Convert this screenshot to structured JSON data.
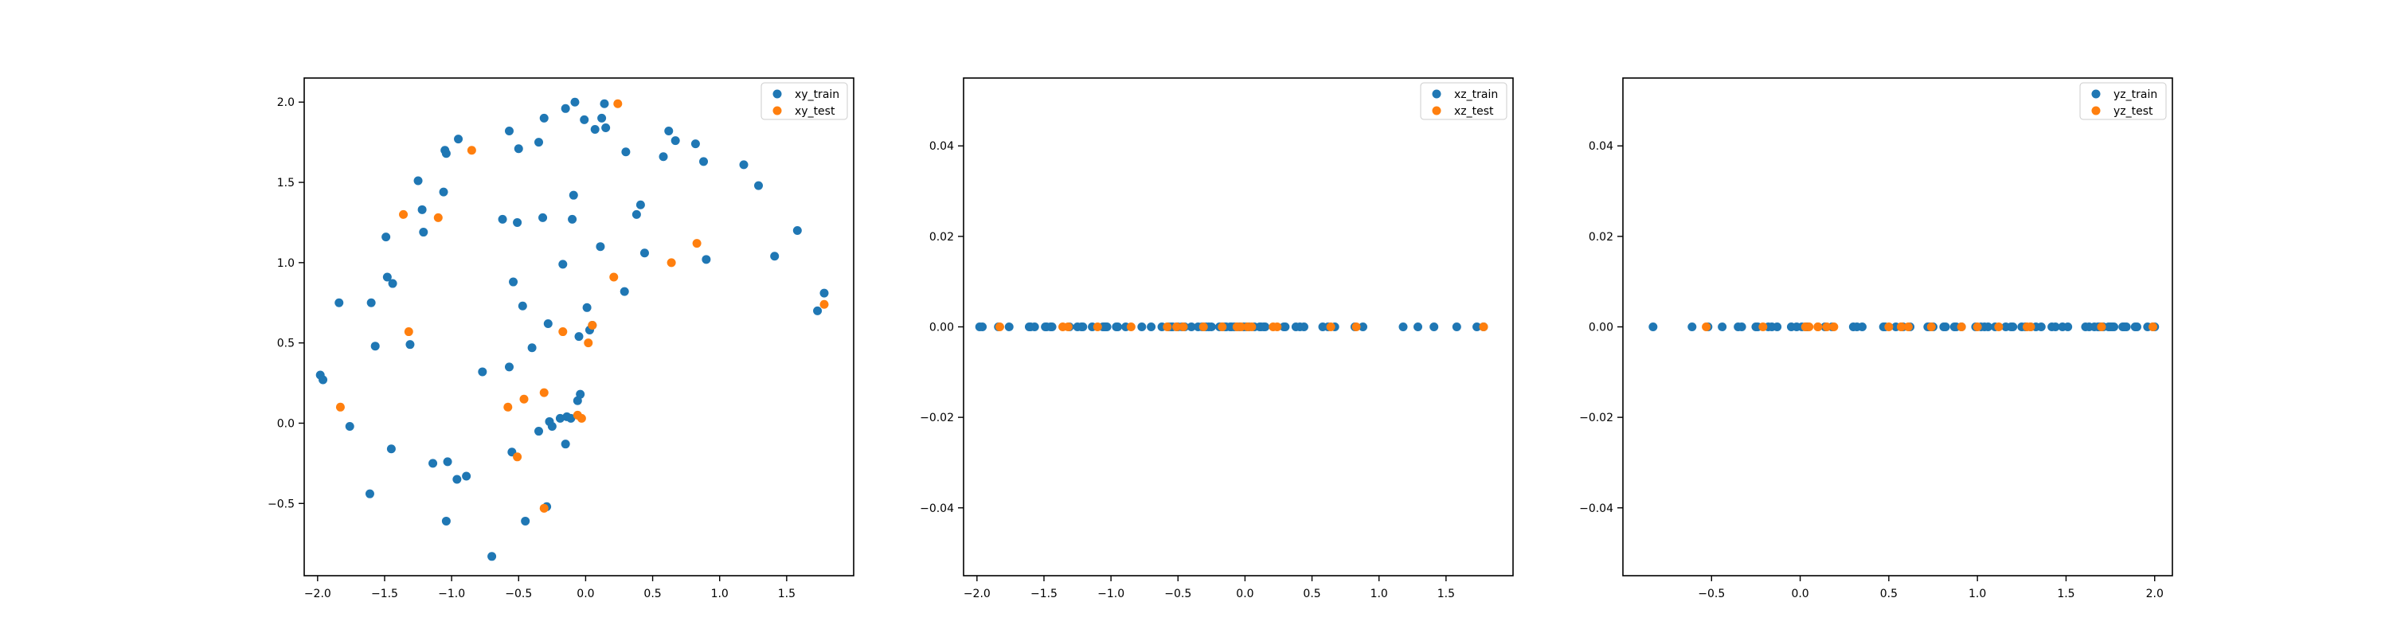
{
  "colors": {
    "train": "#1f77b4",
    "test": "#ff7f0e",
    "axes": "#000000",
    "background": "#ffffff"
  },
  "chart_data": [
    {
      "type": "scatter",
      "title": "",
      "xlabel": "",
      "ylabel": "",
      "xlim": [
        -2.1,
        2.0
      ],
      "ylim": [
        -0.95,
        2.15
      ],
      "xticks": [
        -2.0,
        -1.5,
        -1.0,
        -0.5,
        0.0,
        0.5,
        1.0,
        1.5
      ],
      "yticks": [
        -0.5,
        0.0,
        0.5,
        1.0,
        1.5,
        2.0
      ],
      "xtick_labels": [
        "−2.0",
        "−1.5",
        "−1.0",
        "−0.5",
        "0.0",
        "0.5",
        "1.0",
        "1.5"
      ],
      "ytick_labels": [
        "−0.5",
        "0.0",
        "0.5",
        "1.0",
        "1.5",
        "2.0"
      ],
      "grid": false,
      "legend": "upper right",
      "series": [
        {
          "name": "xy_train",
          "color": "#1f77b4",
          "points": [
            [
              -1.98,
              0.3
            ],
            [
              -1.96,
              0.27
            ],
            [
              -1.84,
              0.75
            ],
            [
              -1.76,
              -0.02
            ],
            [
              -1.61,
              -0.44
            ],
            [
              -1.6,
              0.75
            ],
            [
              -1.57,
              0.48
            ],
            [
              -1.49,
              1.16
            ],
            [
              -1.48,
              0.91
            ],
            [
              -1.45,
              -0.16
            ],
            [
              -1.44,
              0.87
            ],
            [
              -1.31,
              0.49
            ],
            [
              -1.25,
              1.51
            ],
            [
              -1.22,
              1.33
            ],
            [
              -1.21,
              1.19
            ],
            [
              -1.14,
              -0.25
            ],
            [
              -1.06,
              1.44
            ],
            [
              -1.05,
              1.7
            ],
            [
              -1.04,
              1.68
            ],
            [
              -1.03,
              -0.24
            ],
            [
              -1.04,
              -0.61
            ],
            [
              -0.95,
              1.77
            ],
            [
              -0.96,
              -0.35
            ],
            [
              -0.89,
              -0.33
            ],
            [
              -0.77,
              0.32
            ],
            [
              -0.7,
              -0.83
            ],
            [
              -0.62,
              1.27
            ],
            [
              -0.57,
              1.82
            ],
            [
              -0.57,
              0.35
            ],
            [
              -0.55,
              -0.18
            ],
            [
              -0.54,
              0.88
            ],
            [
              -0.51,
              1.25
            ],
            [
              -0.5,
              1.71
            ],
            [
              -0.47,
              0.73
            ],
            [
              -0.45,
              -0.61
            ],
            [
              -0.4,
              0.47
            ],
            [
              -0.35,
              1.75
            ],
            [
              -0.35,
              -0.05
            ],
            [
              -0.32,
              1.28
            ],
            [
              -0.31,
              1.9
            ],
            [
              -0.29,
              -0.52
            ],
            [
              -0.28,
              0.62
            ],
            [
              -0.27,
              0.01
            ],
            [
              -0.25,
              -0.02
            ],
            [
              -0.19,
              0.03
            ],
            [
              -0.17,
              0.99
            ],
            [
              -0.15,
              1.96
            ],
            [
              -0.15,
              -0.13
            ],
            [
              -0.14,
              0.04
            ],
            [
              -0.11,
              0.03
            ],
            [
              -0.1,
              1.27
            ],
            [
              -0.09,
              1.42
            ],
            [
              -0.08,
              2.0
            ],
            [
              -0.06,
              0.14
            ],
            [
              -0.04,
              0.18
            ],
            [
              -0.05,
              0.54
            ],
            [
              -0.01,
              1.89
            ],
            [
              0.01,
              0.72
            ],
            [
              0.03,
              0.58
            ],
            [
              0.05,
              0.61
            ],
            [
              0.07,
              1.83
            ],
            [
              0.11,
              1.1
            ],
            [
              0.12,
              1.9
            ],
            [
              0.14,
              1.99
            ],
            [
              0.15,
              1.84
            ],
            [
              0.29,
              0.82
            ],
            [
              0.3,
              1.69
            ],
            [
              0.38,
              1.3
            ],
            [
              0.41,
              1.36
            ],
            [
              0.44,
              1.06
            ],
            [
              0.58,
              1.66
            ],
            [
              0.62,
              1.82
            ],
            [
              0.67,
              1.76
            ],
            [
              0.82,
              1.74
            ],
            [
              0.88,
              1.63
            ],
            [
              0.9,
              1.02
            ],
            [
              1.18,
              1.61
            ],
            [
              1.29,
              1.48
            ],
            [
              1.41,
              1.04
            ],
            [
              1.58,
              1.2
            ],
            [
              1.73,
              0.7
            ],
            [
              1.78,
              0.81
            ]
          ]
        },
        {
          "name": "xy_test",
          "color": "#ff7f0e",
          "points": [
            [
              -1.83,
              0.1
            ],
            [
              -1.36,
              1.3
            ],
            [
              -1.32,
              0.57
            ],
            [
              -1.1,
              1.28
            ],
            [
              -0.85,
              1.7
            ],
            [
              -0.58,
              0.1
            ],
            [
              -0.51,
              -0.21
            ],
            [
              -0.46,
              0.15
            ],
            [
              -0.31,
              0.19
            ],
            [
              -0.31,
              -0.53
            ],
            [
              -0.17,
              0.57
            ],
            [
              -0.06,
              0.05
            ],
            [
              -0.03,
              0.03
            ],
            [
              0.02,
              0.5
            ],
            [
              0.05,
              0.61
            ],
            [
              0.21,
              0.91
            ],
            [
              0.24,
              1.99
            ],
            [
              0.64,
              1.0
            ],
            [
              0.83,
              1.12
            ],
            [
              1.78,
              0.74
            ]
          ]
        }
      ]
    },
    {
      "type": "scatter",
      "title": "",
      "xlabel": "",
      "ylabel": "",
      "xlim": [
        -2.1,
        2.0
      ],
      "ylim": [
        -0.055,
        0.055
      ],
      "xticks": [
        -2.0,
        -1.5,
        -1.0,
        -0.5,
        0.0,
        0.5,
        1.0,
        1.5
      ],
      "yticks": [
        -0.04,
        -0.02,
        0.0,
        0.02,
        0.04
      ],
      "xtick_labels": [
        "−2.0",
        "−1.5",
        "−1.0",
        "−0.5",
        "0.0",
        "0.5",
        "1.0",
        "1.5"
      ],
      "ytick_labels": [
        "−0.04",
        "−0.02",
        "0.00",
        "0.02",
        "0.04"
      ],
      "grid": false,
      "legend": "upper right",
      "series": [
        {
          "name": "xz_train",
          "color": "#1f77b4",
          "x": [
            -1.98,
            -1.96,
            -1.84,
            -1.76,
            -1.61,
            -1.6,
            -1.57,
            -1.49,
            -1.48,
            -1.45,
            -1.44,
            -1.31,
            -1.25,
            -1.22,
            -1.21,
            -1.14,
            -1.06,
            -1.05,
            -1.04,
            -1.03,
            -0.96,
            -0.95,
            -0.89,
            -0.77,
            -0.7,
            -0.62,
            -0.57,
            -0.55,
            -0.54,
            -0.51,
            -0.5,
            -0.47,
            -0.45,
            -0.4,
            -0.35,
            -0.32,
            -0.31,
            -0.29,
            -0.27,
            -0.25,
            -0.19,
            -0.17,
            -0.15,
            -0.14,
            -0.11,
            -0.1,
            -0.08,
            -0.06,
            -0.04,
            -0.01,
            0.01,
            0.03,
            0.07,
            0.11,
            0.12,
            0.14,
            0.15,
            0.29,
            0.3,
            0.38,
            0.41,
            0.44,
            0.58,
            0.62,
            0.67,
            0.82,
            0.88,
            1.18,
            1.29,
            1.41,
            1.58,
            1.73,
            1.78
          ],
          "y_value": 0.0
        },
        {
          "name": "xz_test",
          "color": "#ff7f0e",
          "x": [
            -1.83,
            -1.36,
            -1.32,
            -1.1,
            -0.85,
            -0.58,
            -0.51,
            -0.46,
            -0.31,
            -0.17,
            -0.06,
            -0.03,
            0.02,
            0.05,
            0.21,
            0.24,
            0.64,
            0.83,
            1.78
          ],
          "y_value": 0.0
        }
      ]
    },
    {
      "type": "scatter",
      "title": "",
      "xlabel": "",
      "ylabel": "",
      "xlim": [
        -1.0,
        2.1
      ],
      "ylim": [
        -0.055,
        0.055
      ],
      "xticks": [
        -0.5,
        0.0,
        0.5,
        1.0,
        1.5,
        2.0
      ],
      "yticks": [
        -0.04,
        -0.02,
        0.0,
        0.02,
        0.04
      ],
      "xtick_labels": [
        "−0.5",
        "0.0",
        "0.5",
        "1.0",
        "1.5",
        "2.0"
      ],
      "ytick_labels": [
        "−0.04",
        "−0.02",
        "0.00",
        "0.02",
        "0.04"
      ],
      "grid": false,
      "legend": "upper right",
      "series": [
        {
          "name": "yz_train",
          "color": "#1f77b4",
          "x": [
            -0.83,
            -0.61,
            -0.52,
            -0.44,
            -0.35,
            -0.33,
            -0.25,
            -0.24,
            -0.18,
            -0.16,
            -0.13,
            -0.05,
            -0.02,
            0.01,
            0.03,
            0.04,
            0.14,
            0.18,
            0.3,
            0.32,
            0.35,
            0.47,
            0.48,
            0.54,
            0.58,
            0.62,
            0.72,
            0.73,
            0.75,
            0.81,
            0.82,
            0.87,
            0.88,
            0.91,
            0.99,
            1.02,
            1.04,
            1.06,
            1.1,
            1.16,
            1.19,
            1.2,
            1.25,
            1.27,
            1.3,
            1.33,
            1.36,
            1.42,
            1.44,
            1.48,
            1.51,
            1.61,
            1.63,
            1.66,
            1.68,
            1.69,
            1.7,
            1.71,
            1.74,
            1.75,
            1.76,
            1.77,
            1.82,
            1.83,
            1.84,
            1.89,
            1.9,
            1.96,
            1.99,
            2.0
          ],
          "y_value": 0.0
        },
        {
          "name": "yz_test",
          "color": "#ff7f0e",
          "x": [
            -0.53,
            -0.21,
            0.03,
            0.05,
            0.1,
            0.1,
            0.15,
            0.19,
            0.5,
            0.57,
            0.57,
            0.61,
            0.74,
            0.91,
            1.0,
            1.12,
            1.28,
            1.3,
            1.7,
            1.99
          ],
          "y_value": 0.0
        }
      ]
    }
  ]
}
